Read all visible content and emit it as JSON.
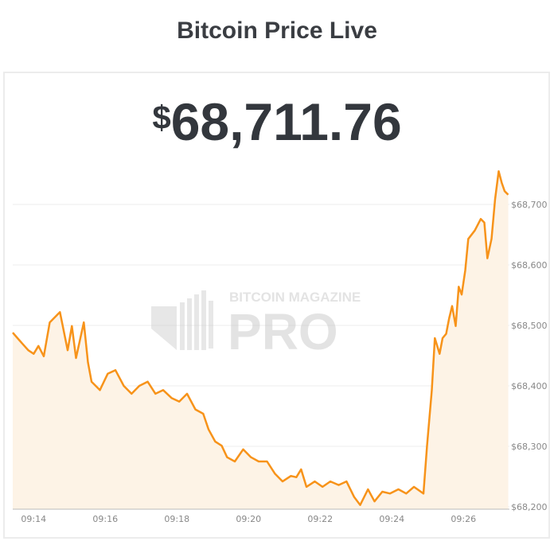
{
  "header": {
    "title": "Bitcoin Price Live"
  },
  "price": {
    "currency": "$",
    "value": "68,711.76"
  },
  "watermark": {
    "line1": "BITCOIN MAGAZINE",
    "line2": "PRO"
  },
  "colors": {
    "line": "#f7931a",
    "fill": "#fdf3e6",
    "grid": "#eeeeee"
  },
  "chart_data": {
    "type": "area",
    "title": "",
    "xlabel": "",
    "ylabel": "",
    "ylim": [
      68200,
      68780
    ],
    "xlim": [
      "09:13:25",
      "09:27:17"
    ],
    "grid": true,
    "x_ticks": [
      "09:14",
      "09:16",
      "09:18",
      "09:20",
      "09:22",
      "09:24",
      "09:26"
    ],
    "y_ticks": [
      {
        "value": 68200,
        "label": "$68,200"
      },
      {
        "value": 68300,
        "label": "$68,300"
      },
      {
        "value": 68400,
        "label": "$68,400"
      },
      {
        "value": 68500,
        "label": "$68,500"
      },
      {
        "value": 68600,
        "label": "$68,600"
      },
      {
        "value": 68700,
        "label": "$68,700"
      }
    ],
    "points": [
      [
        "09:13:25",
        68488
      ],
      [
        "09:13:33",
        68479
      ],
      [
        "09:13:41",
        68470
      ],
      [
        "09:13:51",
        68459
      ],
      [
        "09:14:00",
        68453
      ],
      [
        "09:14:08",
        68466
      ],
      [
        "09:14:17",
        68449
      ],
      [
        "09:14:27",
        68505
      ],
      [
        "09:14:44",
        68522
      ],
      [
        "09:14:57",
        68459
      ],
      [
        "09:15:04",
        68499
      ],
      [
        "09:15:11",
        68446
      ],
      [
        "09:15:24",
        68505
      ],
      [
        "09:15:31",
        68439
      ],
      [
        "09:15:37",
        68407
      ],
      [
        "09:15:51",
        68393
      ],
      [
        "09:16:04",
        68420
      ],
      [
        "09:16:17",
        68426
      ],
      [
        "09:16:31",
        68400
      ],
      [
        "09:16:44",
        68387
      ],
      [
        "09:16:57",
        68400
      ],
      [
        "09:17:11",
        68407
      ],
      [
        "09:17:24",
        68387
      ],
      [
        "09:17:37",
        68393
      ],
      [
        "09:17:51",
        68380
      ],
      [
        "09:18:04",
        68374
      ],
      [
        "09:18:17",
        68387
      ],
      [
        "09:18:31",
        68361
      ],
      [
        "09:18:44",
        68354
      ],
      [
        "09:18:53",
        68328
      ],
      [
        "09:19:04",
        68308
      ],
      [
        "09:19:15",
        68301
      ],
      [
        "09:19:24",
        68282
      ],
      [
        "09:19:37",
        68275
      ],
      [
        "09:19:51",
        68295
      ],
      [
        "09:20:04",
        68282
      ],
      [
        "09:20:17",
        68275
      ],
      [
        "09:20:31",
        68275
      ],
      [
        "09:20:44",
        68255
      ],
      [
        "09:20:57",
        68242
      ],
      [
        "09:21:11",
        68251
      ],
      [
        "09:21:20",
        68249
      ],
      [
        "09:21:28",
        68262
      ],
      [
        "09:21:37",
        68233
      ],
      [
        "09:21:51",
        68242
      ],
      [
        "09:22:04",
        68233
      ],
      [
        "09:22:17",
        68242
      ],
      [
        "09:22:31",
        68236
      ],
      [
        "09:22:44",
        68242
      ],
      [
        "09:22:57",
        68216
      ],
      [
        "09:23:07",
        68203
      ],
      [
        "09:23:20",
        68229
      ],
      [
        "09:23:31",
        68209
      ],
      [
        "09:23:44",
        68225
      ],
      [
        "09:23:57",
        68222
      ],
      [
        "09:24:11",
        68229
      ],
      [
        "09:24:24",
        68222
      ],
      [
        "09:24:37",
        68233
      ],
      [
        "09:24:53",
        68222
      ],
      [
        "09:24:59",
        68301
      ],
      [
        "09:25:07",
        68393
      ],
      [
        "09:25:12",
        68479
      ],
      [
        "09:25:20",
        68453
      ],
      [
        "09:25:25",
        68479
      ],
      [
        "09:25:31",
        68486
      ],
      [
        "09:25:36",
        68512
      ],
      [
        "09:25:41",
        68532
      ],
      [
        "09:25:47",
        68499
      ],
      [
        "09:25:52",
        68564
      ],
      [
        "09:25:57",
        68551
      ],
      [
        "09:26:03",
        68591
      ],
      [
        "09:26:08",
        68643
      ],
      [
        "09:26:19",
        68657
      ],
      [
        "09:26:29",
        68676
      ],
      [
        "09:26:35",
        68670
      ],
      [
        "09:26:40",
        68611
      ],
      [
        "09:26:47",
        68643
      ],
      [
        "09:26:53",
        68709
      ],
      [
        "09:26:59",
        68755
      ],
      [
        "09:27:04",
        68736
      ],
      [
        "09:27:09",
        68722
      ],
      [
        "09:27:15",
        68716
      ]
    ]
  }
}
